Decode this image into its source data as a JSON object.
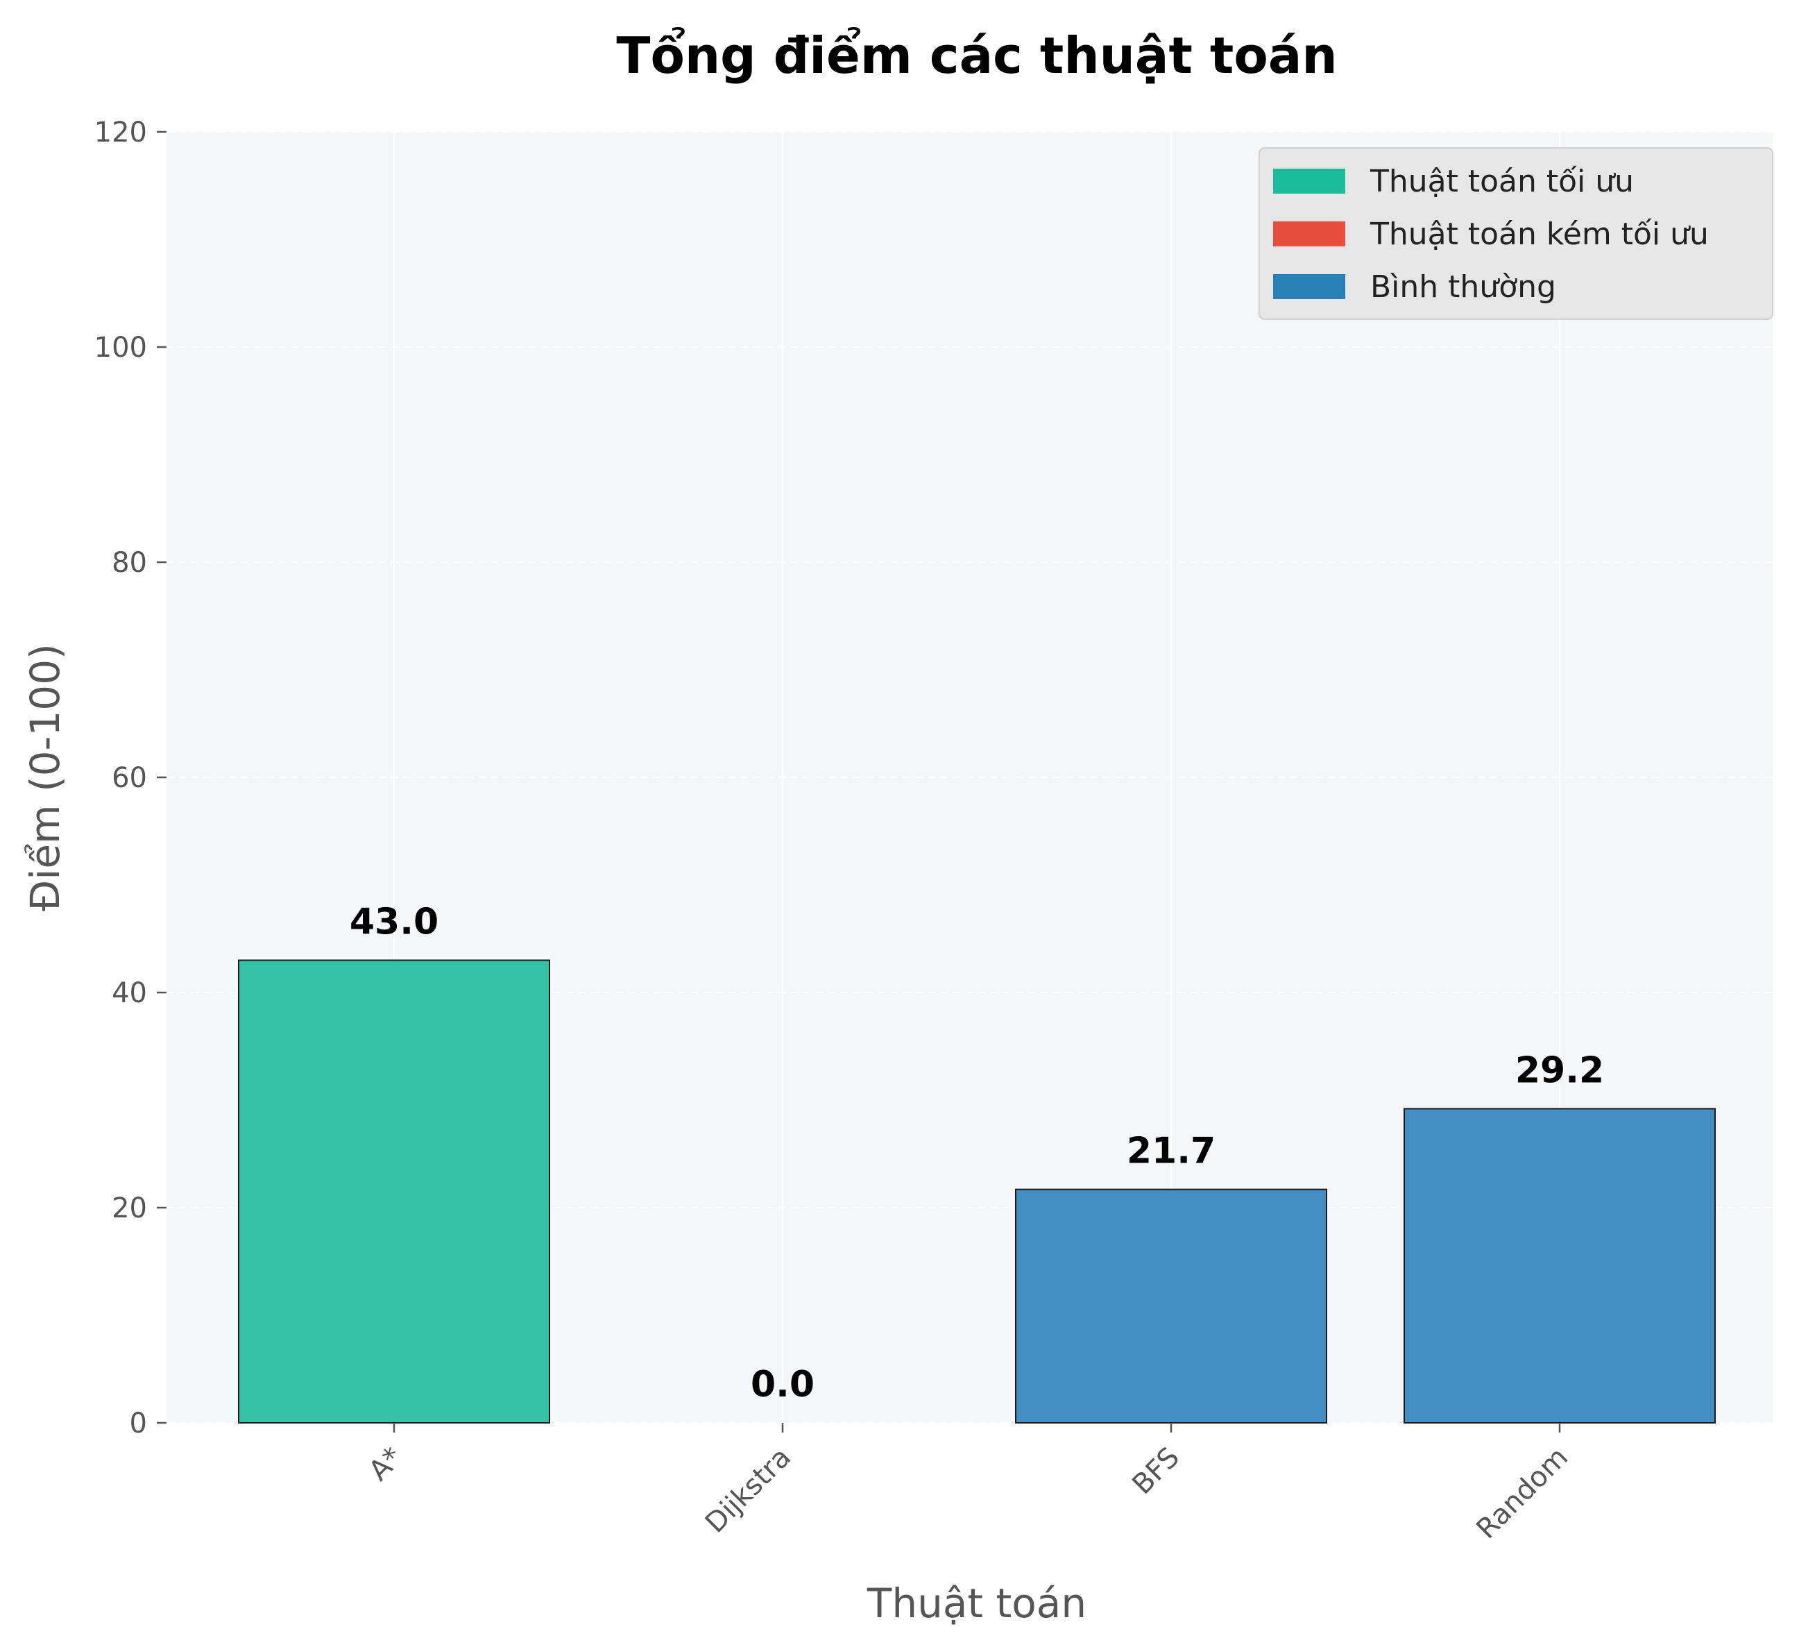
{
  "chart_data": {
    "type": "bar",
    "title": "Tổng điểm các thuật toán",
    "xlabel": "Thuật toán",
    "ylabel": "Điểm (0-100)",
    "categories": [
      "A*",
      "Dijkstra",
      "BFS",
      "Random"
    ],
    "values": [
      43.0,
      0.0,
      21.7,
      29.2
    ],
    "value_labels": [
      "43.0",
      "0.0",
      "21.7",
      "29.2"
    ],
    "bar_groups": [
      "optimal",
      "poor",
      "normal",
      "normal"
    ],
    "ylim": [
      0,
      120
    ],
    "yticks": [
      0,
      20,
      40,
      60,
      80,
      100,
      120
    ],
    "grid": true,
    "legend_position": "top-right",
    "legend": [
      {
        "key": "optimal",
        "label": "Thuật toán tối ưu",
        "color": "#1abc9c"
      },
      {
        "key": "poor",
        "label": "Thuật toán kém tối ưu",
        "color": "#e74c3c"
      },
      {
        "key": "normal",
        "label": "Bình thường",
        "color": "#2980b9"
      }
    ],
    "colors": {
      "plot_background": "#f4f6fa",
      "grid": "#ffffff",
      "bar_edge": "#1a1a1a"
    }
  }
}
